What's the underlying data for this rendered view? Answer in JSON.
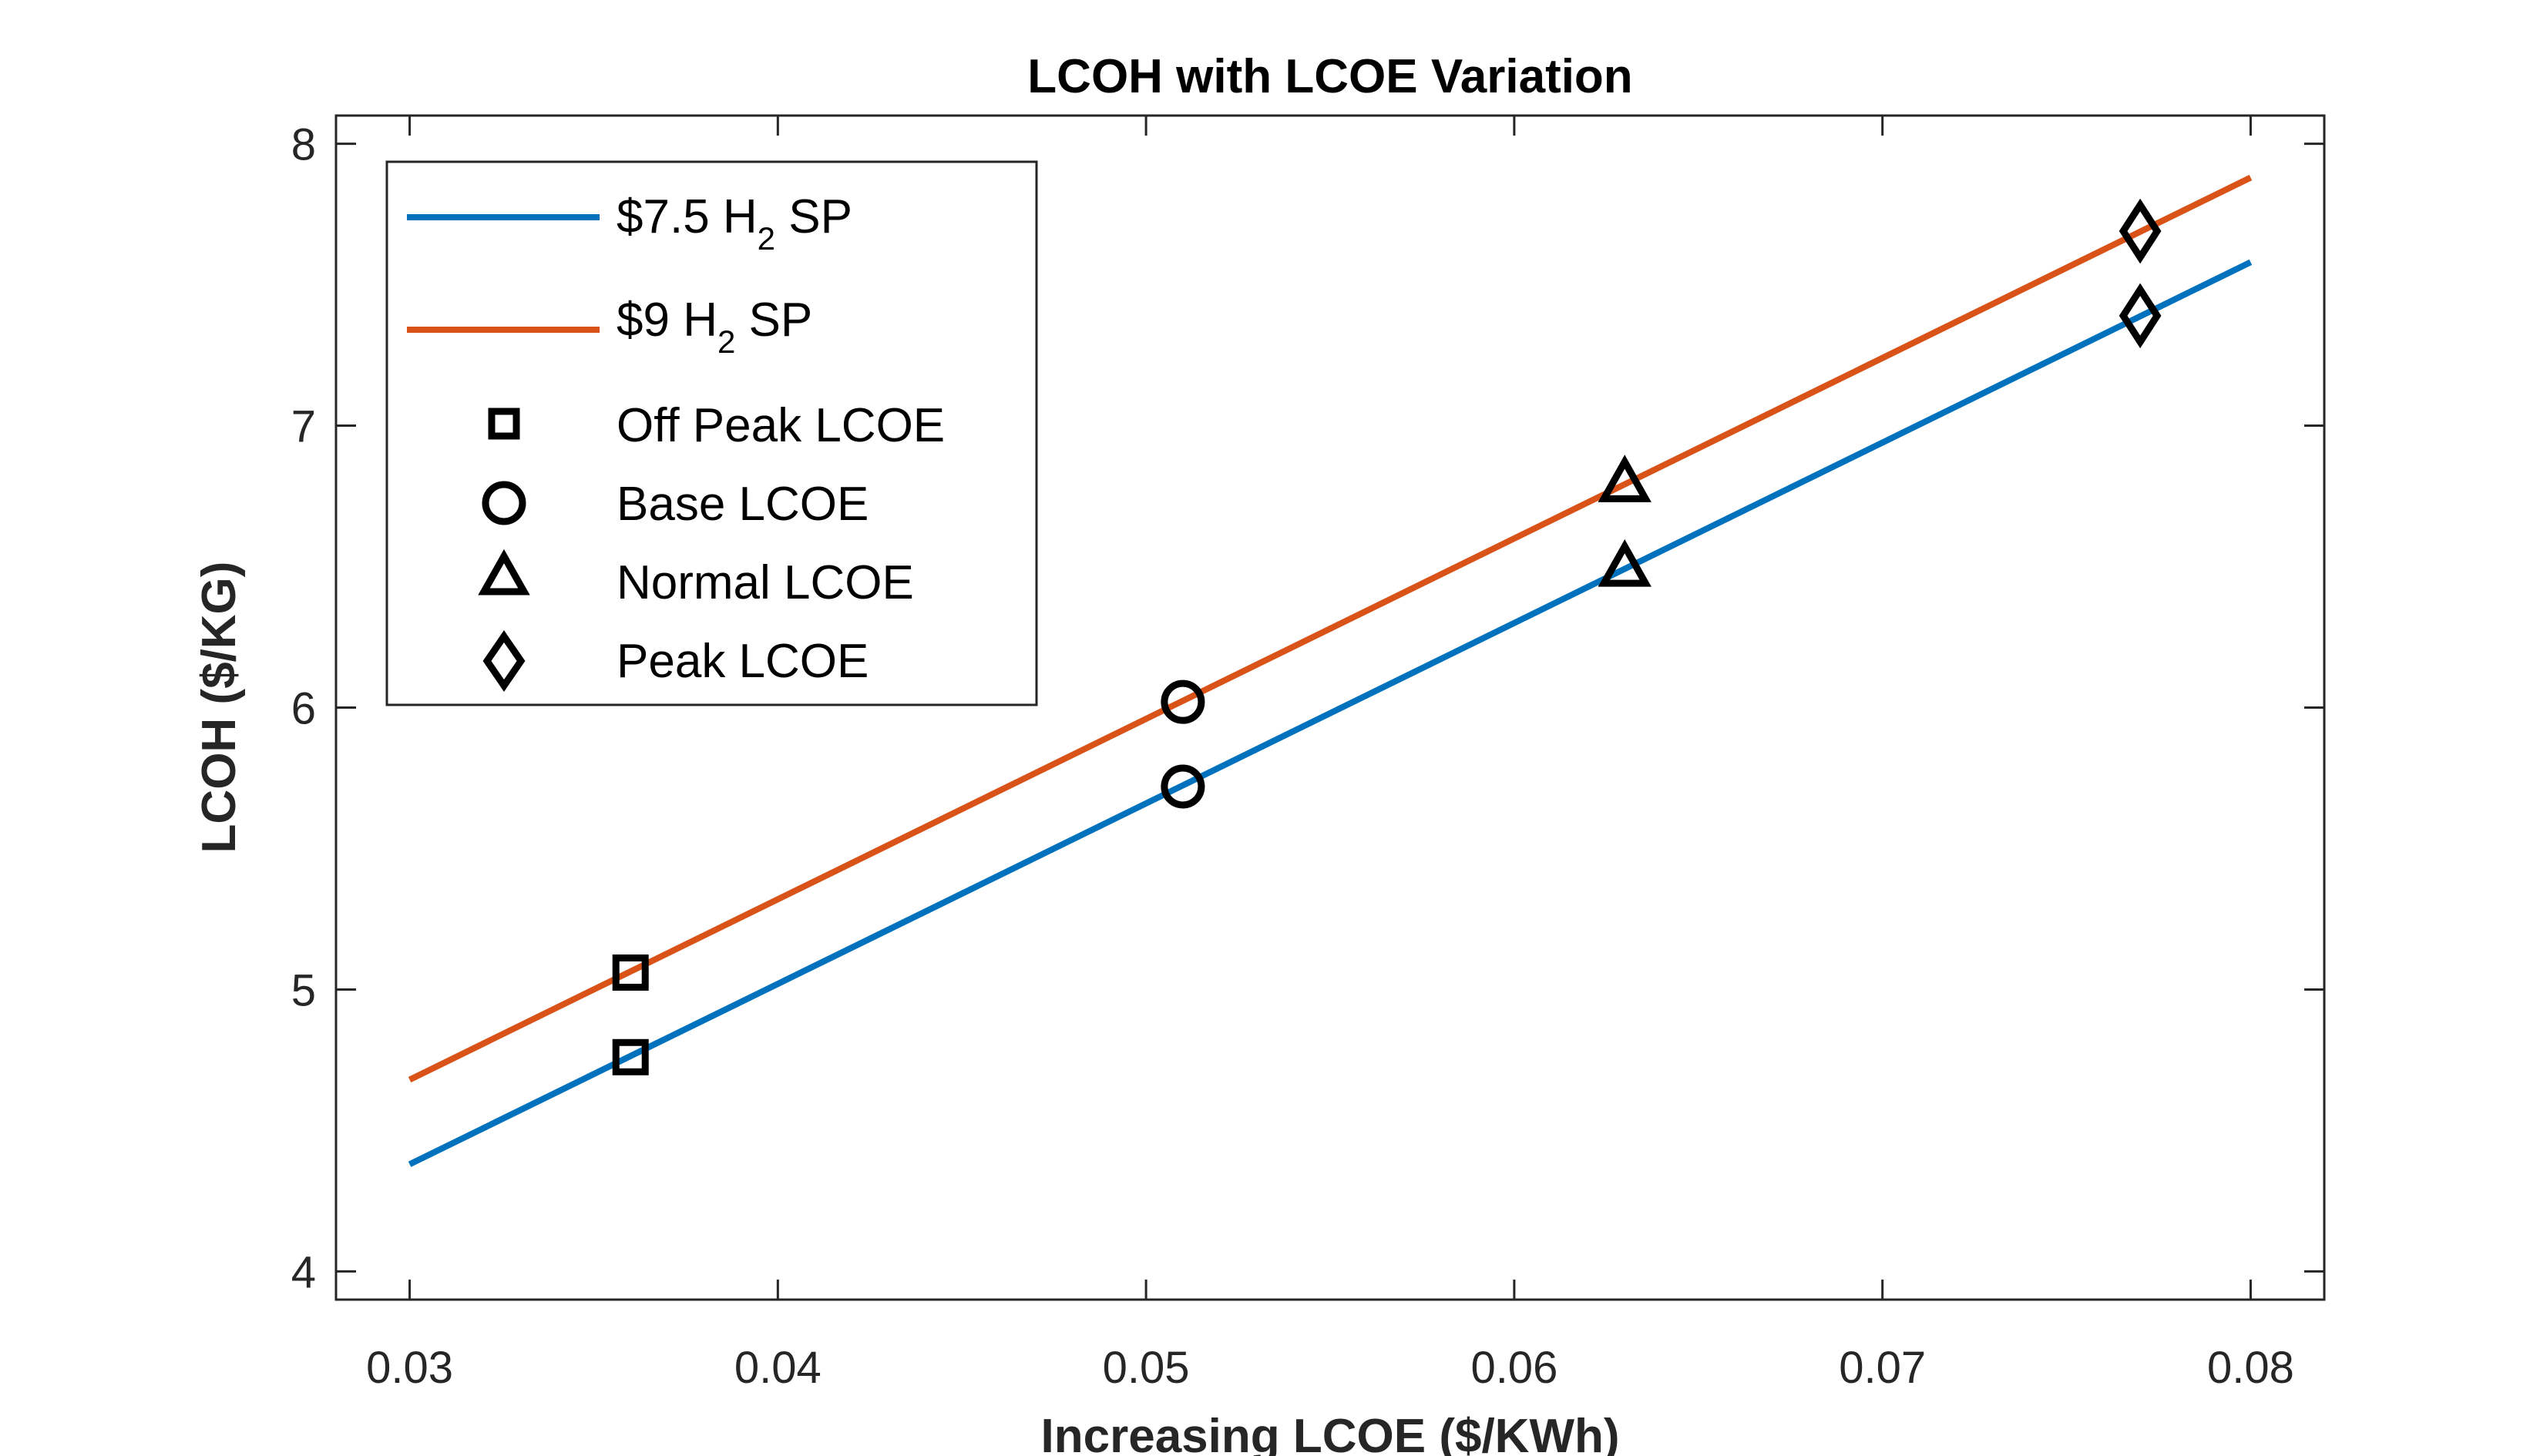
{
  "chart_data": {
    "type": "line",
    "title": "LCOH with LCOE Variation",
    "xlabel": "Increasing LCOE ($/KWh)",
    "ylabel": "LCOH ($/KG)",
    "xlim": [
      0.028,
      0.082
    ],
    "ylim": [
      3.9,
      8.1
    ],
    "xticks": [
      0.03,
      0.04,
      0.05,
      0.06,
      0.07,
      0.08
    ],
    "xtick_labels": [
      "0.03",
      "0.04",
      "0.05",
      "0.06",
      "0.07",
      "0.08"
    ],
    "yticks": [
      4,
      5,
      6,
      7,
      8
    ],
    "ytick_labels": [
      "4",
      "5",
      "6",
      "7",
      "8"
    ],
    "grid": false,
    "legend_position": "top-left",
    "series": [
      {
        "name_prefix": "$7.5 H",
        "name_subscript": "2",
        "name_suffix": " SP",
        "color": "#0072BD",
        "x": [
          0.03,
          0.08
        ],
        "y": [
          4.38,
          7.58
        ]
      },
      {
        "name_prefix": "$9 H",
        "name_subscript": "2",
        "name_suffix": " SP",
        "color": "#D95319",
        "x": [
          0.03,
          0.08
        ],
        "y": [
          4.68,
          7.88
        ]
      }
    ],
    "marker_groups": [
      {
        "name": "Off Peak LCOE",
        "marker": "square",
        "x": 0.036,
        "y": [
          4.76,
          5.06
        ]
      },
      {
        "name": "Base LCOE",
        "marker": "circle",
        "x": 0.051,
        "y": [
          5.72,
          6.02
        ]
      },
      {
        "name": "Normal LCOE",
        "marker": "triangle",
        "x": 0.063,
        "y": [
          6.49,
          6.79
        ]
      },
      {
        "name": "Peak LCOE",
        "marker": "diamond",
        "x": 0.077,
        "y": [
          7.39,
          7.69
        ]
      }
    ]
  }
}
